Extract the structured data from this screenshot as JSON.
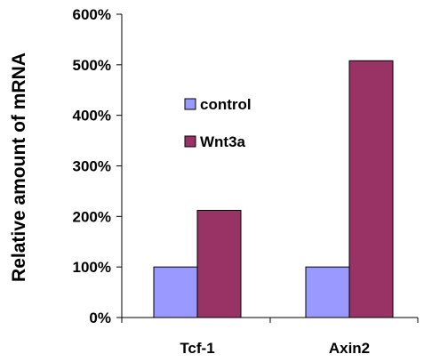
{
  "chart_data": {
    "type": "bar",
    "title": "",
    "xlabel": "",
    "ylabel": "Relative amount of mRNA",
    "categories": [
      "Tcf-1",
      "Axin2"
    ],
    "series": [
      {
        "name": "control",
        "values": [
          100,
          100
        ],
        "color": "#9999ff"
      },
      {
        "name": "Wnt3a",
        "values": [
          212,
          508
        ],
        "color": "#993366"
      }
    ],
    "ylim": [
      0,
      600
    ],
    "yticks": [
      0,
      100,
      200,
      300,
      400,
      500,
      600
    ],
    "ytick_labels": [
      "0%",
      "100%",
      "200%",
      "300%",
      "400%",
      "500%",
      "600%"
    ],
    "grid": false,
    "legend_position": "upper-left inside plot"
  }
}
